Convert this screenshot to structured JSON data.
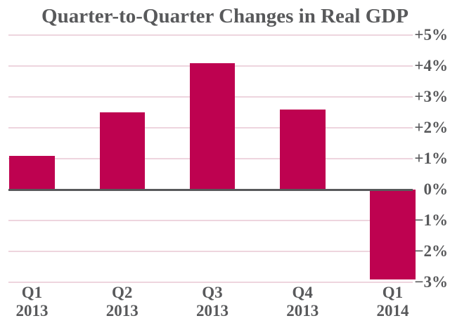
{
  "title": "Quarter-to-Quarter Changes in Real GDP",
  "colors": {
    "bar": "#BE0250",
    "gridline": "#EED5DE",
    "zero_axis": "#58595B",
    "text": "#58595B"
  },
  "chart_data": {
    "type": "bar",
    "title": "Quarter-to-Quarter Changes in Real GDP",
    "categories": [
      [
        "Q1",
        "2013"
      ],
      [
        "Q2",
        "2013"
      ],
      [
        "Q3",
        "2013"
      ],
      [
        "Q4",
        "2013"
      ],
      [
        "Q1",
        "2014"
      ]
    ],
    "values": [
      1.1,
      2.5,
      4.1,
      2.6,
      -2.9
    ],
    "value_unit": "percent",
    "xlabel": "",
    "ylabel": "",
    "ylim": [
      -3,
      5
    ],
    "y_axis_side": "right",
    "grid": true,
    "legend_position": "none",
    "y_ticks": [
      {
        "value": 5,
        "label": "+5%"
      },
      {
        "value": 4,
        "label": "+4%"
      },
      {
        "value": 3,
        "label": "+3%"
      },
      {
        "value": 2,
        "label": "+2%"
      },
      {
        "value": 1,
        "label": "+1%"
      },
      {
        "value": 0,
        "label": "0%"
      },
      {
        "value": -1,
        "label": "−1%"
      },
      {
        "value": -2,
        "label": "−2%"
      },
      {
        "value": -3,
        "label": "−3%"
      }
    ]
  }
}
